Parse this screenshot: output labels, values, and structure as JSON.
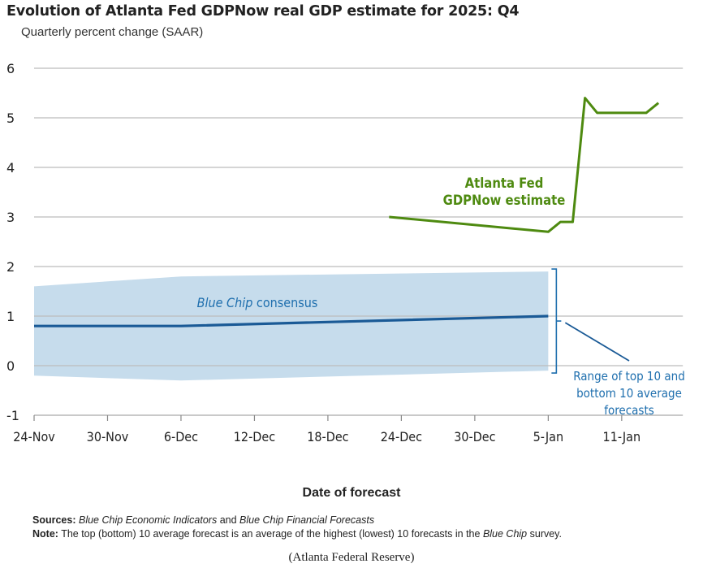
{
  "chart_data": {
    "type": "line",
    "title": "Evolution of Atlanta Fed GDPNow real GDP estimate for 2025: Q4",
    "subtitle": "Quarterly percent change (SAAR)",
    "xlabel": "Date of forecast",
    "ylabel": "",
    "ylim": [
      -1,
      6
    ],
    "yticks": [
      "6",
      "5",
      "4",
      "3",
      "2",
      "1",
      "0",
      "-1"
    ],
    "xlim": [
      "2025-11-24",
      "2026-01-15"
    ],
    "xticks": [
      {
        "date": "2025-11-24",
        "label": "24-Nov"
      },
      {
        "date": "2025-11-30",
        "label": "30-Nov"
      },
      {
        "date": "2025-12-06",
        "label": "6-Dec"
      },
      {
        "date": "2025-12-12",
        "label": "12-Dec"
      },
      {
        "date": "2025-12-18",
        "label": "18-Dec"
      },
      {
        "date": "2025-12-24",
        "label": "24-Dec"
      },
      {
        "date": "2025-12-30",
        "label": "30-Dec"
      },
      {
        "date": "2026-01-05",
        "label": "5-Jan"
      },
      {
        "date": "2026-01-11",
        "label": "11-Jan"
      }
    ],
    "grid": true,
    "series": [
      {
        "name": "Atlanta Fed GDPNow estimate",
        "label_lines": [
          "Atlanta Fed",
          "GDPNow estimate"
        ],
        "color": "#4e8a10",
        "points": [
          [
            "2025-12-23",
            3.0
          ],
          [
            "2026-01-05",
            2.7
          ],
          [
            "2026-01-06",
            2.9
          ],
          [
            "2026-01-07",
            2.9
          ],
          [
            "2026-01-08",
            5.4
          ],
          [
            "2026-01-09",
            5.1
          ],
          [
            "2026-01-13",
            5.1
          ],
          [
            "2026-01-14",
            5.3
          ]
        ]
      },
      {
        "name": "Blue Chip consensus",
        "label_italic": "Blue Chip",
        "label_rest": " consensus",
        "color": "#1a5a96",
        "points": [
          [
            "2025-11-24",
            0.8
          ],
          [
            "2025-12-06",
            0.8
          ],
          [
            "2026-01-05",
            1.0
          ]
        ]
      }
    ],
    "band": {
      "label_lines": [
        "Range of top 10 and",
        "bottom 10 average",
        "forecasts"
      ],
      "color": "#c6dcec",
      "upper": [
        [
          "2025-11-24",
          1.6
        ],
        [
          "2025-12-06",
          1.8
        ],
        [
          "2026-01-05",
          1.9
        ]
      ],
      "lower": [
        [
          "2025-11-24",
          -0.2
        ],
        [
          "2025-12-06",
          -0.3
        ],
        [
          "2026-01-05",
          -0.1
        ]
      ]
    }
  },
  "footer": {
    "sources_label": "Sources:",
    "sources_italic1": "Blue Chip Economic Indicators",
    "sources_and": " and ",
    "sources_italic2": "Blue Chip Financial Forecasts",
    "note_label": "Note:",
    "note_text": " The top (bottom) 10 average forecast is an average of the highest (lowest) 10 forecasts in the ",
    "note_italic": "Blue Chip",
    "note_end": " survey.",
    "credit": "(Atlanta Federal Reserve)"
  }
}
